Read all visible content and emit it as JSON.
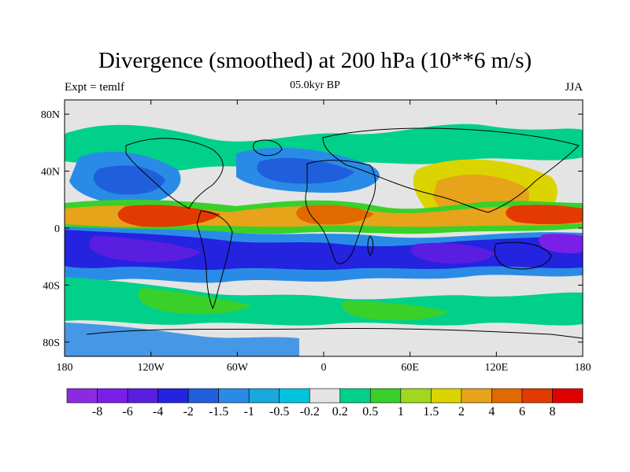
{
  "title": "Divergence (smoothed) at 200 hPa (10**6 m/s)",
  "subtitle_left": "Expt = temlf",
  "subtitle_center": "05.0kyr BP",
  "subtitle_right": "JJA",
  "lat_ticks": [
    {
      "label": "80N",
      "lat": 80
    },
    {
      "label": "40N",
      "lat": 40
    },
    {
      "label": "0",
      "lat": 0
    },
    {
      "label": "40S",
      "lat": -40
    },
    {
      "label": "80S",
      "lat": -80
    }
  ],
  "lon_ticks": [
    {
      "label": "180",
      "lon": -180
    },
    {
      "label": "120W",
      "lon": -120
    },
    {
      "label": "60W",
      "lon": -60
    },
    {
      "label": "0",
      "lon": 0
    },
    {
      "label": "60E",
      "lon": 60
    },
    {
      "label": "120E",
      "lon": 120
    },
    {
      "label": "180",
      "lon": 180
    }
  ],
  "colorbar": {
    "colors": [
      "#8a2be2",
      "#7a1fe8",
      "#5a1ee0",
      "#2323e0",
      "#1f5fdc",
      "#2a8be6",
      "#18a8dd",
      "#00c4df",
      "#e4e4e4",
      "#00d08a",
      "#3ad02a",
      "#a0d81e",
      "#dcd400",
      "#e7a31a",
      "#e06a00",
      "#e23a00",
      "#e00000"
    ],
    "labels": [
      "-8",
      "-6",
      "-4",
      "-2",
      "-1.5",
      "-1",
      "-0.5",
      "-0.2",
      "0.2",
      "0.5",
      "1",
      "1.5",
      "2",
      "4",
      "6",
      "8"
    ]
  },
  "field_features": [
    {
      "name": "eq-pacific-east-max",
      "lon": -100,
      "lat": 8,
      "value": 7
    },
    {
      "name": "africa-max",
      "lon": 5,
      "lat": 8,
      "value": 5
    },
    {
      "name": "asia-max",
      "lon": 95,
      "lat": 22,
      "value": 4
    },
    {
      "name": "w-pacific-max",
      "lon": 155,
      "lat": 6,
      "value": 6
    },
    {
      "name": "s-pacific-min",
      "lon": -130,
      "lat": -15,
      "value": -6
    },
    {
      "name": "s-atlantic-min",
      "lon": -25,
      "lat": -18,
      "value": -5
    },
    {
      "name": "s-indian-min",
      "lon": 80,
      "lat": -22,
      "value": -5
    },
    {
      "name": "w-pacific-min",
      "lon": 170,
      "lat": -10,
      "value": -6
    },
    {
      "name": "n-pacific-min",
      "lon": -150,
      "lat": 38,
      "value": -2
    },
    {
      "name": "n-atlantic-min",
      "lon": -40,
      "lat": 30,
      "value": -1.5
    }
  ]
}
